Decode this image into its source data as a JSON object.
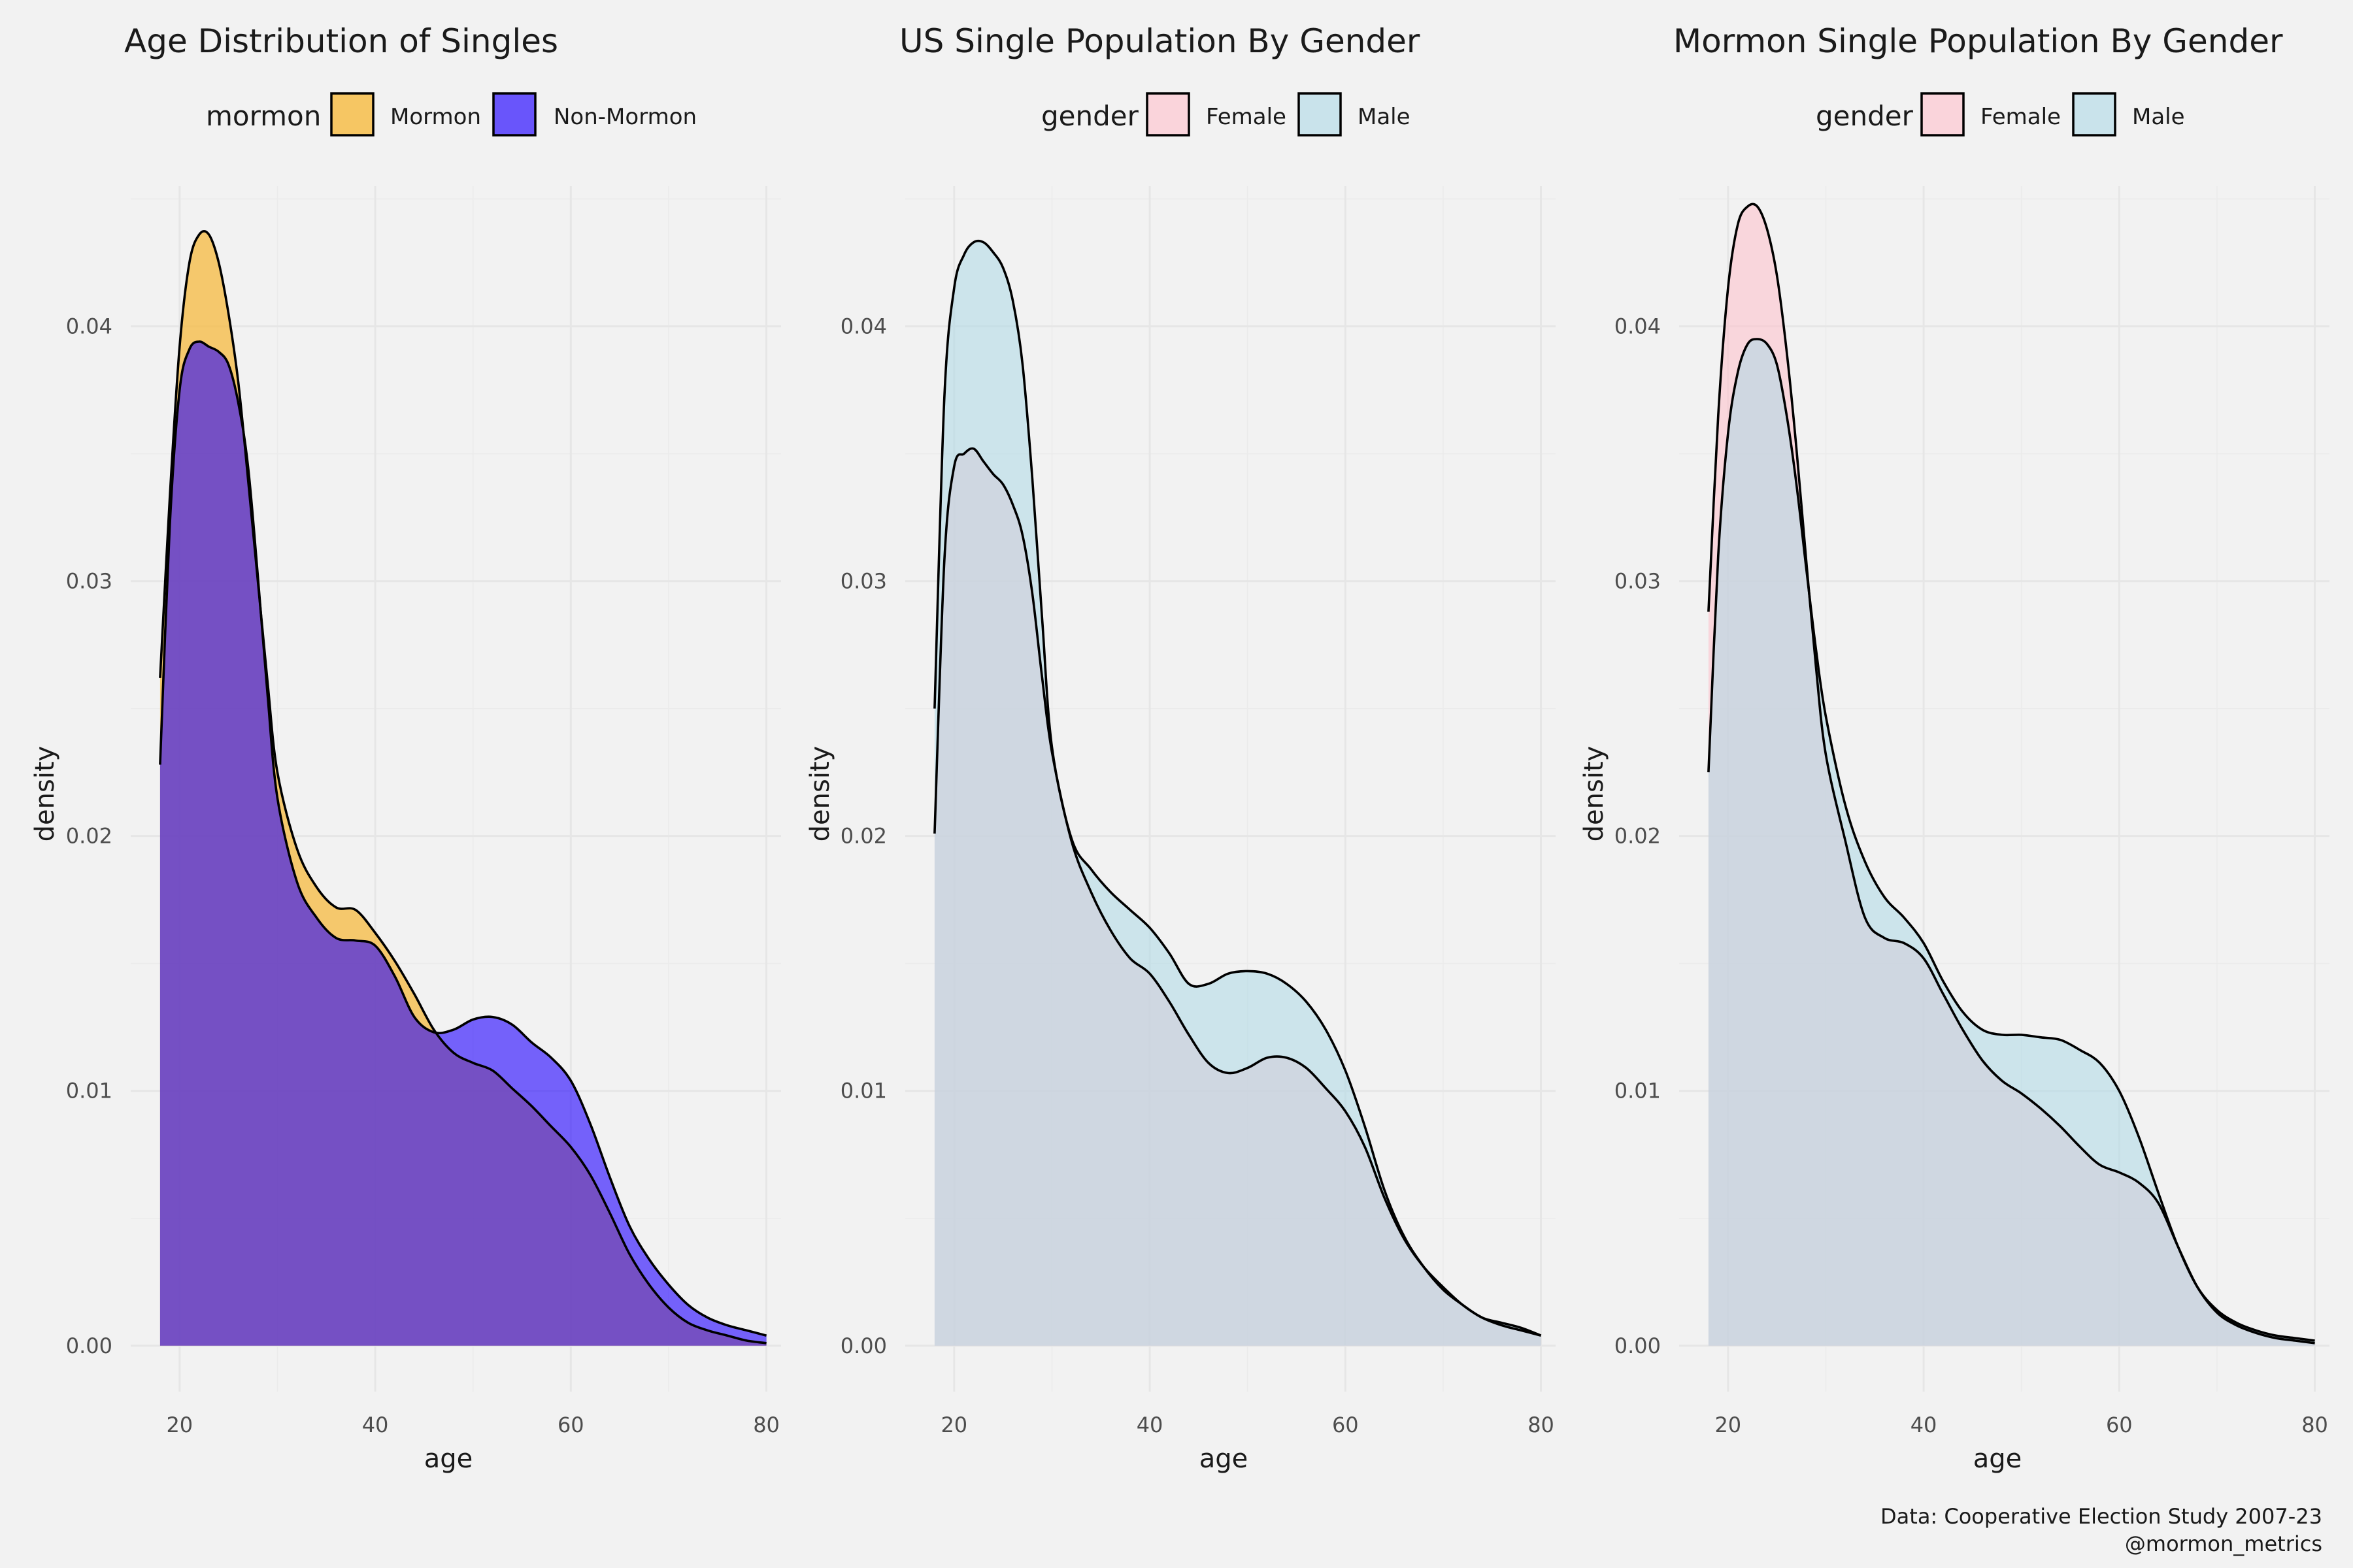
{
  "colors": {
    "background": "#f2f2f2",
    "mormon": "#f7b733",
    "non_mormon": "#1f00ff",
    "female": "#ffc0cb",
    "male": "#add8e6",
    "outline": "#000000"
  },
  "caption": {
    "line1": "Data: Cooperative Election Study 2007-23",
    "line2": "@mormon_metrics"
  },
  "chart_data": [
    {
      "type": "area",
      "title": "Age Distribution of Singles",
      "xlabel": "age",
      "ylabel": "density",
      "xlim": [
        15,
        81.5
      ],
      "ylim": [
        -0.0018,
        0.0455
      ],
      "xticks": [
        20,
        40,
        60,
        80
      ],
      "yticks": [
        0.0,
        0.01,
        0.02,
        0.03,
        0.04
      ],
      "ytick_labels": [
        "0.00",
        "0.01",
        "0.02",
        "0.03",
        "0.04"
      ],
      "legend": {
        "title": "mormon",
        "position": "top"
      },
      "series": [
        {
          "name": "Mormon",
          "fill": "#f7b733",
          "opacity": 0.7,
          "x": [
            18,
            19,
            20,
            21,
            22,
            23,
            24,
            25,
            26,
            27,
            28,
            29,
            30,
            32,
            34,
            36,
            38,
            40,
            42,
            44,
            46,
            48,
            50,
            52,
            54,
            56,
            58,
            60,
            62,
            64,
            66,
            68,
            70,
            72,
            74,
            76,
            78,
            80
          ],
          "y": [
            0.0262,
            0.0333,
            0.0392,
            0.0425,
            0.0436,
            0.0436,
            0.0425,
            0.0405,
            0.0378,
            0.034,
            0.03,
            0.026,
            0.0225,
            0.0195,
            0.018,
            0.0172,
            0.0171,
            0.0162,
            0.0151,
            0.0138,
            0.0124,
            0.0115,
            0.0111,
            0.0108,
            0.0101,
            0.0094,
            0.0086,
            0.0078,
            0.0067,
            0.0052,
            0.0036,
            0.0024,
            0.0015,
            0.0009,
            0.0006,
            0.0004,
            0.0002,
            0.0001
          ]
        },
        {
          "name": "Non-Mormon",
          "fill": "#1f00ff",
          "opacity": 0.6,
          "x": [
            18,
            19,
            20,
            21,
            22,
            23,
            24,
            25,
            26,
            27,
            28,
            29,
            30,
            32,
            34,
            36,
            38,
            40,
            42,
            44,
            46,
            48,
            50,
            52,
            54,
            56,
            58,
            60,
            62,
            64,
            66,
            68,
            70,
            72,
            74,
            76,
            78,
            80
          ],
          "y": [
            0.0228,
            0.0322,
            0.0375,
            0.0391,
            0.0394,
            0.0392,
            0.039,
            0.0385,
            0.037,
            0.0345,
            0.0302,
            0.0255,
            0.0215,
            0.0182,
            0.0168,
            0.016,
            0.0159,
            0.0157,
            0.0145,
            0.0129,
            0.0123,
            0.0124,
            0.0128,
            0.0129,
            0.0126,
            0.0119,
            0.0113,
            0.0104,
            0.0087,
            0.0066,
            0.0047,
            0.0034,
            0.0024,
            0.0016,
            0.0011,
            0.0008,
            0.0006,
            0.0004
          ]
        }
      ]
    },
    {
      "type": "area",
      "title": "US Single Population By Gender",
      "xlabel": "age",
      "ylabel": "density",
      "xlim": [
        15,
        81.5
      ],
      "ylim": [
        -0.0018,
        0.0455
      ],
      "xticks": [
        20,
        40,
        60,
        80
      ],
      "yticks": [
        0.0,
        0.01,
        0.02,
        0.03,
        0.04
      ],
      "ytick_labels": [
        "0.00",
        "0.01",
        "0.02",
        "0.03",
        "0.04"
      ],
      "legend": {
        "title": "gender",
        "position": "top"
      },
      "series": [
        {
          "name": "Female",
          "fill": "#ffc0cb",
          "opacity": 0.55,
          "x": [
            18,
            19,
            20,
            21,
            22,
            23,
            24,
            25,
            26,
            27,
            28,
            29,
            30,
            32,
            34,
            36,
            38,
            40,
            42,
            44,
            46,
            48,
            50,
            52,
            54,
            56,
            58,
            60,
            62,
            64,
            66,
            68,
            70,
            72,
            74,
            76,
            78,
            80
          ],
          "y": [
            0.0201,
            0.0308,
            0.0345,
            0.035,
            0.0352,
            0.0347,
            0.0342,
            0.0338,
            0.033,
            0.0318,
            0.0295,
            0.0262,
            0.0233,
            0.0198,
            0.0178,
            0.0163,
            0.0152,
            0.0146,
            0.0135,
            0.0122,
            0.0111,
            0.0107,
            0.0109,
            0.0113,
            0.0113,
            0.0109,
            0.0101,
            0.0092,
            0.0078,
            0.0058,
            0.0042,
            0.0031,
            0.0023,
            0.0016,
            0.0011,
            0.0008,
            0.0006,
            0.0004
          ]
        },
        {
          "name": "Male",
          "fill": "#add8e6",
          "opacity": 0.55,
          "x": [
            18,
            19,
            20,
            21,
            22,
            23,
            24,
            25,
            26,
            27,
            28,
            29,
            30,
            32,
            34,
            36,
            38,
            40,
            42,
            44,
            46,
            48,
            50,
            52,
            54,
            56,
            58,
            60,
            62,
            64,
            66,
            68,
            70,
            72,
            74,
            76,
            78,
            80
          ],
          "y": [
            0.025,
            0.0372,
            0.0415,
            0.0428,
            0.0433,
            0.0433,
            0.0429,
            0.0423,
            0.041,
            0.0385,
            0.034,
            0.0285,
            0.0235,
            0.0199,
            0.0187,
            0.0178,
            0.0171,
            0.0164,
            0.0154,
            0.0142,
            0.0142,
            0.0146,
            0.0147,
            0.0146,
            0.0142,
            0.0135,
            0.0124,
            0.0108,
            0.0086,
            0.0061,
            0.0043,
            0.0031,
            0.0022,
            0.0016,
            0.0011,
            0.0009,
            0.0007,
            0.0004
          ]
        }
      ]
    },
    {
      "type": "area",
      "title": "Mormon Single Population By Gender",
      "xlabel": "age",
      "ylabel": "density",
      "xlim": [
        15,
        81.5
      ],
      "ylim": [
        -0.0018,
        0.0455
      ],
      "xticks": [
        20,
        40,
        60,
        80
      ],
      "yticks": [
        0.0,
        0.01,
        0.02,
        0.03,
        0.04
      ],
      "ytick_labels": [
        "0.00",
        "0.01",
        "0.02",
        "0.03",
        "0.04"
      ],
      "legend": {
        "title": "gender",
        "position": "top"
      },
      "series": [
        {
          "name": "Female",
          "fill": "#ffc0cb",
          "opacity": 0.55,
          "x": [
            18,
            19,
            20,
            21,
            22,
            23,
            24,
            25,
            26,
            27,
            28,
            29,
            30,
            32,
            34,
            36,
            38,
            40,
            42,
            44,
            46,
            48,
            50,
            52,
            54,
            56,
            58,
            60,
            62,
            64,
            66,
            68,
            70,
            72,
            74,
            76,
            78,
            80
          ],
          "y": [
            0.0288,
            0.0365,
            0.0415,
            0.044,
            0.0447,
            0.0447,
            0.0438,
            0.042,
            0.039,
            0.0352,
            0.0308,
            0.0266,
            0.0232,
            0.0198,
            0.0168,
            0.016,
            0.0158,
            0.0152,
            0.0138,
            0.0124,
            0.0112,
            0.0104,
            0.0099,
            0.0093,
            0.0086,
            0.0078,
            0.0071,
            0.0068,
            0.0064,
            0.0056,
            0.0039,
            0.0023,
            0.0013,
            0.0008,
            0.0005,
            0.0003,
            0.0002,
            0.0001
          ]
        },
        {
          "name": "Male",
          "fill": "#add8e6",
          "opacity": 0.55,
          "x": [
            18,
            19,
            20,
            21,
            22,
            23,
            24,
            25,
            26,
            27,
            28,
            29,
            30,
            32,
            34,
            36,
            38,
            40,
            42,
            44,
            46,
            48,
            50,
            52,
            54,
            56,
            58,
            60,
            62,
            64,
            66,
            68,
            70,
            72,
            74,
            76,
            78,
            80
          ],
          "y": [
            0.0225,
            0.031,
            0.0358,
            0.0382,
            0.0393,
            0.0395,
            0.0393,
            0.0385,
            0.0365,
            0.0338,
            0.0305,
            0.0273,
            0.0247,
            0.0212,
            0.019,
            0.0176,
            0.0168,
            0.0158,
            0.0143,
            0.0131,
            0.0124,
            0.0122,
            0.0122,
            0.0121,
            0.012,
            0.0116,
            0.0111,
            0.01,
            0.0082,
            0.006,
            0.0039,
            0.0023,
            0.0014,
            0.0009,
            0.0006,
            0.0004,
            0.0003,
            0.0002
          ]
        }
      ]
    }
  ]
}
